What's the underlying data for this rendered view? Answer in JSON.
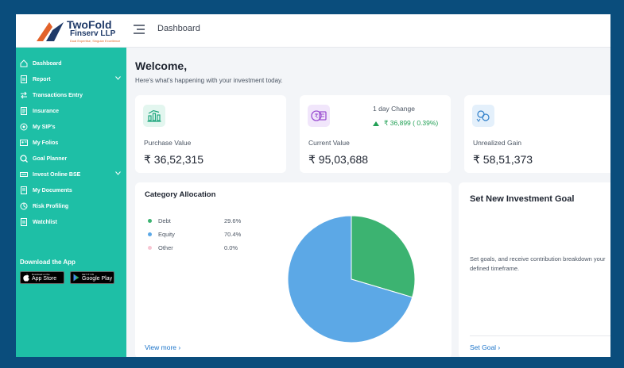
{
  "brand": {
    "name_line1": "TwoFold",
    "name_line2": "Finserv LLP",
    "tagline": "Dual Expertise, Singular Excellence"
  },
  "header": {
    "title": "Dashboard"
  },
  "sidebar": {
    "items": [
      {
        "label": "Dashboard",
        "icon": "home-icon"
      },
      {
        "label": "Report",
        "icon": "report-icon",
        "has_submenu": true
      },
      {
        "label": "Transactions Entry",
        "icon": "transfer-icon"
      },
      {
        "label": "Insurance",
        "icon": "document-icon"
      },
      {
        "label": "My SIP's",
        "icon": "sip-icon"
      },
      {
        "label": "My Folios",
        "icon": "folio-icon"
      },
      {
        "label": "Goal Planner",
        "icon": "goal-icon"
      },
      {
        "label": "Invest Online BSE",
        "icon": "bse-icon",
        "has_submenu": true
      },
      {
        "label": "My Documents",
        "icon": "document-icon"
      },
      {
        "label": "Risk Profiling",
        "icon": "risk-icon"
      },
      {
        "label": "Watchlist",
        "icon": "watchlist-icon"
      }
    ],
    "download_title": "Download the App",
    "app_store": {
      "small": "Download on the",
      "big": "App Store"
    },
    "google_play": {
      "small": "GET IT ON",
      "big": "Google Play"
    }
  },
  "welcome": {
    "title": "Welcome,",
    "subtitle": "Here's what's happening with your investment today."
  },
  "stats": {
    "purchase": {
      "label": "Purchase Value",
      "value": "₹ 36,52,315"
    },
    "current": {
      "label": "Current Value",
      "value": "₹ 95,03,688",
      "change_label": "1 day Change",
      "change_value": "₹ 36,899 ( 0.39%)"
    },
    "unrealized": {
      "label": "Unrealized Gain",
      "value": "₹ 58,51,373"
    }
  },
  "allocation": {
    "title": "Category Allocation",
    "legend": [
      {
        "label": "Debt",
        "pct": "29.6%",
        "color": "#3cb371"
      },
      {
        "label": "Equity",
        "pct": "70.4%",
        "color": "#5ca8e6"
      },
      {
        "label": "Other",
        "pct": "0.0%",
        "color": "#f7c6d3"
      }
    ],
    "view_more": "View more  ›"
  },
  "chart_data": {
    "type": "pie",
    "title": "Category Allocation",
    "categories": [
      "Debt",
      "Equity",
      "Other"
    ],
    "values": [
      29.6,
      70.4,
      0.0
    ],
    "colors": [
      "#3cb371",
      "#5ca8e6",
      "#f7c6d3"
    ]
  },
  "goal": {
    "title": "Set New Investment Goal",
    "text": "Set goals, and receive contribution breakdown your defined timeframe.",
    "link": "Set Goal  ›"
  },
  "colors": {
    "sidebar": "#1ebfa6",
    "accent_blue": "#1a73c9",
    "positive": "#22a055",
    "outer_bg": "#0a4d7c"
  }
}
